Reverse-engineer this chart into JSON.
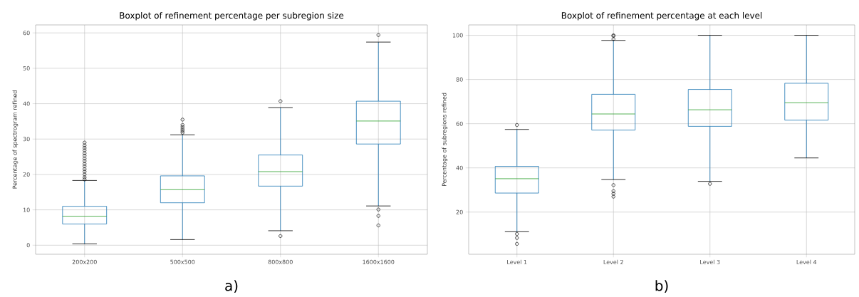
{
  "chart_data": [
    {
      "type": "box",
      "title": "Boxplot of refinement percentage per subregion size",
      "ylabel": "Percentage of spectrogram refined",
      "categories": [
        "200x200",
        "500x500",
        "800x800",
        "1600x1600"
      ],
      "ylim": [
        -2.55,
        62.25
      ],
      "yticks": [
        0,
        10,
        20,
        30,
        40,
        50,
        60
      ],
      "grid": true,
      "annotations": [
        "a)"
      ],
      "series": [
        {
          "color": "#1f77b4",
          "boxes": [
            {
              "low": 0.4,
              "q1": 6,
              "median": 8.2,
              "q3": 11,
              "high": 18.3,
              "outliers": [
                18.6,
                19.2,
                20,
                20.8,
                21.5,
                22.3,
                23,
                23.8,
                24.5,
                25.3,
                26,
                26.8,
                27.5,
                28.2,
                29
              ]
            },
            {
              "low": 1.6,
              "q1": 12,
              "median": 15.7,
              "q3": 19.6,
              "high": 31.2,
              "outliers": [
                31.8,
                32.3,
                32.8,
                33.4,
                34,
                35.5
              ]
            },
            {
              "low": 4.1,
              "q1": 16.7,
              "median": 20.8,
              "q3": 25.5,
              "high": 38.9,
              "outliers": [
                2.6,
                40.7
              ]
            },
            {
              "low": 11.1,
              "q1": 28.6,
              "median": 35.1,
              "q3": 40.7,
              "high": 57.4,
              "outliers": [
                5.6,
                8.3,
                10.1,
                59.4
              ]
            }
          ]
        }
      ]
    },
    {
      "type": "box",
      "title": "Boxplot of refinement percentage at each level",
      "ylabel": "Percentage of subregions refined",
      "categories": [
        "Level 1",
        "Level 2",
        "Level 3",
        "Level 4"
      ],
      "ylim": [
        0.9,
        104.7
      ],
      "yticks": [
        20,
        40,
        60,
        80,
        100
      ],
      "grid": true,
      "annotations": [
        "b)"
      ],
      "series": [
        {
          "color": "#1f77b4",
          "boxes": [
            {
              "low": 11.1,
              "q1": 28.6,
              "median": 35.1,
              "q3": 40.7,
              "high": 57.4,
              "outliers": [
                5.6,
                8.3,
                10.1,
                59.4
              ]
            },
            {
              "low": 34.7,
              "q1": 57.1,
              "median": 64.4,
              "q3": 73.3,
              "high": 97.7,
              "outliers": [
                27,
                28.3,
                29.5,
                32.2,
                98.3,
                99.7,
                100
              ]
            },
            {
              "low": 33.9,
              "q1": 58.8,
              "median": 66.3,
              "q3": 75.5,
              "high": 100,
              "outliers": [
                32.8
              ]
            },
            {
              "low": 44.5,
              "q1": 61.6,
              "median": 69.5,
              "q3": 78.3,
              "high": 100
            }
          ]
        }
      ]
    }
  ]
}
